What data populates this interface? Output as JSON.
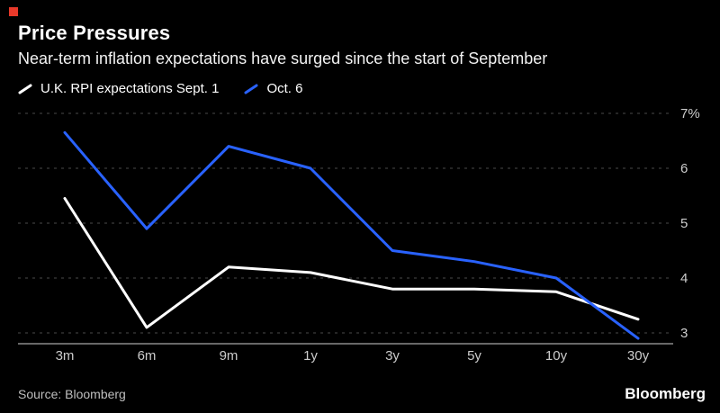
{
  "marker": {
    "color": "#e8392a"
  },
  "header": {
    "title": "Price Pressures",
    "subtitle": "Near-term inflation expectations have surged since the start of September"
  },
  "legend": [
    {
      "label": "U.K. RPI expectations Sept. 1",
      "color": "#ffffff"
    },
    {
      "label": "Oct. 6",
      "color": "#2962ff"
    }
  ],
  "footer": {
    "source": "Source: Bloomberg",
    "brand": "Bloomberg"
  },
  "chart_data": {
    "type": "line",
    "title": "Price Pressures",
    "subtitle": "Near-term inflation expectations have surged since the start of September",
    "categories": [
      "3m",
      "6m",
      "9m",
      "1y",
      "3y",
      "5y",
      "10y",
      "30y"
    ],
    "series": [
      {
        "name": "U.K. RPI expectations Sept. 1",
        "color": "#ffffff",
        "values": [
          5.45,
          3.1,
          4.2,
          4.1,
          3.8,
          3.8,
          3.75,
          3.25
        ]
      },
      {
        "name": "Oct. 6",
        "color": "#2962ff",
        "values": [
          6.65,
          4.9,
          6.4,
          6.0,
          4.5,
          4.3,
          4.0,
          2.9
        ]
      }
    ],
    "yticks": [
      3,
      4,
      5,
      6,
      7
    ],
    "ytick_top_suffix": "%",
    "ylim": [
      2.8,
      7.1
    ],
    "xlabel": "",
    "ylabel": "",
    "grid": "horizontal-dashed",
    "legend_position": "top-left",
    "colors": {
      "grid": "#4a4a4a",
      "axis": "#8a8a8a",
      "tick_text": "#cccccc"
    }
  }
}
